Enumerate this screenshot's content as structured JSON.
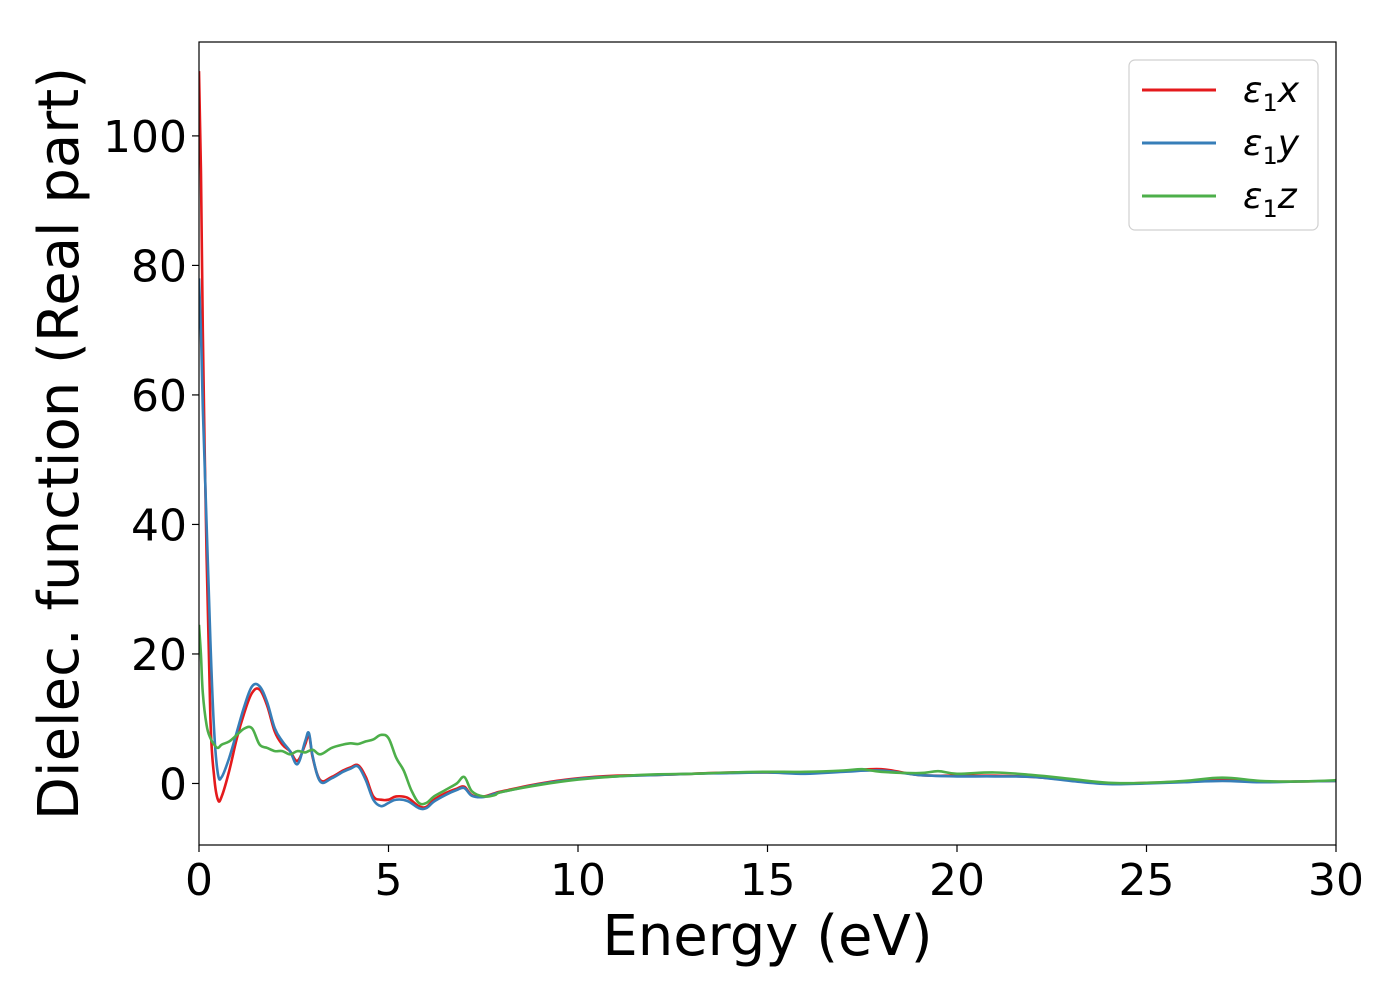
{
  "chart_data": {
    "type": "line",
    "title": "",
    "xlabel": "Energy (eV)",
    "ylabel": "Dielec. function (Real part)",
    "xlim": [
      0,
      30
    ],
    "ylim": [
      -9.5,
      114.5
    ],
    "xticks": [
      0,
      5,
      10,
      15,
      20,
      25,
      30
    ],
    "yticks": [
      0,
      20,
      40,
      60,
      80,
      100
    ],
    "grid": false,
    "legend_position": "top-right",
    "series": [
      {
        "name": "ε₁x",
        "symbol": "ε",
        "subscript": "1",
        "axis": "x",
        "color": "#e41a1c",
        "x": [
          0,
          0.05,
          0.1,
          0.2,
          0.3,
          0.4,
          0.5,
          0.6,
          0.8,
          1.0,
          1.2,
          1.4,
          1.6,
          1.8,
          2.0,
          2.2,
          2.4,
          2.6,
          2.8,
          2.9,
          3.0,
          3.2,
          3.5,
          3.8,
          4.0,
          4.2,
          4.4,
          4.6,
          4.8,
          5.0,
          5.2,
          5.5,
          5.8,
          6.0,
          6.2,
          6.5,
          6.8,
          7.0,
          7.2,
          7.5,
          7.8,
          8,
          9,
          10,
          11,
          12,
          13,
          14,
          15,
          16,
          17,
          18,
          19,
          20,
          21,
          22,
          23,
          24,
          25,
          26,
          27,
          28,
          29,
          30
        ],
        "y": [
          110,
          95,
          70,
          35,
          10,
          1,
          -2.5,
          -2,
          2,
          7,
          11,
          14,
          14.5,
          12,
          8,
          6,
          5,
          3.5,
          6,
          7.5,
          4,
          0.5,
          1,
          2,
          2.5,
          2.8,
          1,
          -2,
          -2.5,
          -2.5,
          -2.0,
          -2.2,
          -3.5,
          -3.6,
          -2.5,
          -1.5,
          -0.8,
          -0.5,
          -1.8,
          -2.0,
          -1.5,
          -1.2,
          0,
          0.8,
          1.2,
          1.3,
          1.5,
          1.7,
          1.7,
          1.6,
          1.9,
          2.2,
          1.3,
          1.2,
          1.2,
          1.0,
          0.5,
          0.0,
          0.1,
          0.3,
          0.6,
          0.3,
          0.3,
          0.4
        ]
      },
      {
        "name": "ε₁y",
        "symbol": "ε",
        "subscript": "1",
        "axis": "y",
        "color": "#377eb8",
        "x": [
          0,
          0.05,
          0.1,
          0.2,
          0.3,
          0.4,
          0.5,
          0.6,
          0.8,
          1.0,
          1.2,
          1.4,
          1.6,
          1.8,
          2.0,
          2.2,
          2.4,
          2.6,
          2.8,
          2.9,
          3.0,
          3.2,
          3.5,
          3.8,
          4.0,
          4.2,
          4.4,
          4.6,
          4.8,
          5.0,
          5.2,
          5.5,
          5.8,
          6.0,
          6.2,
          6.5,
          6.8,
          7.0,
          7.2,
          7.5,
          7.8,
          8,
          9,
          10,
          11,
          12,
          13,
          14,
          15,
          16,
          17,
          18,
          19,
          20,
          21,
          22,
          23,
          24,
          25,
          26,
          27,
          28,
          29,
          30
        ],
        "y": [
          78,
          70,
          58,
          40,
          22,
          8,
          1.5,
          1.0,
          4,
          8,
          12,
          15,
          15,
          12.5,
          8.5,
          6.5,
          5,
          3.0,
          6.5,
          7.8,
          4.2,
          0.3,
          0.8,
          1.8,
          2.3,
          2.6,
          0.5,
          -2.5,
          -3.5,
          -3.0,
          -2.5,
          -2.7,
          -3.8,
          -3.8,
          -2.8,
          -1.8,
          -1.0,
          -0.7,
          -1.9,
          -2.1,
          -1.6,
          -1.3,
          -0.1,
          0.7,
          1.1,
          1.3,
          1.5,
          1.6,
          1.7,
          1.5,
          1.8,
          2.0,
          1.3,
          1.1,
          1.1,
          1.0,
          0.4,
          -0.1,
          0.0,
          0.2,
          0.4,
          0.2,
          0.3,
          0.4
        ]
      },
      {
        "name": "ε₁z",
        "symbol": "ε",
        "subscript": "1",
        "axis": "z",
        "color": "#4daf4a",
        "x": [
          0,
          0.05,
          0.1,
          0.2,
          0.3,
          0.4,
          0.5,
          0.6,
          0.8,
          1.0,
          1.2,
          1.4,
          1.6,
          1.8,
          2.0,
          2.2,
          2.4,
          2.6,
          2.8,
          3.0,
          3.2,
          3.5,
          3.8,
          4.0,
          4.2,
          4.4,
          4.6,
          4.8,
          5.0,
          5.2,
          5.4,
          5.6,
          5.8,
          6.0,
          6.2,
          6.5,
          6.8,
          7.0,
          7.2,
          7.5,
          7.8,
          8,
          9,
          10,
          11,
          12,
          13,
          14,
          15,
          16,
          17,
          17.5,
          18,
          19,
          19.5,
          20,
          21,
          22,
          23,
          24,
          25,
          26,
          27,
          28,
          29,
          30
        ],
        "y": [
          24.5,
          20,
          14,
          9,
          7,
          6,
          5.5,
          6,
          6.5,
          7.5,
          8.5,
          8.5,
          6,
          5.5,
          5,
          5,
          4.5,
          5,
          4.8,
          5.2,
          4.5,
          5.5,
          6,
          6.2,
          6.1,
          6.5,
          6.8,
          7.5,
          7.0,
          4.0,
          2.0,
          -1.0,
          -3.0,
          -3.0,
          -2.0,
          -1.0,
          0.0,
          1.0,
          -1.2,
          -2.0,
          -1.8,
          -1.3,
          -0.2,
          0.6,
          1.1,
          1.4,
          1.5,
          1.7,
          1.8,
          1.8,
          2.0,
          2.2,
          1.8,
          1.6,
          1.9,
          1.5,
          1.7,
          1.3,
          0.7,
          0.1,
          0.1,
          0.4,
          0.9,
          0.4,
          0.3,
          0.5
        ]
      }
    ]
  }
}
